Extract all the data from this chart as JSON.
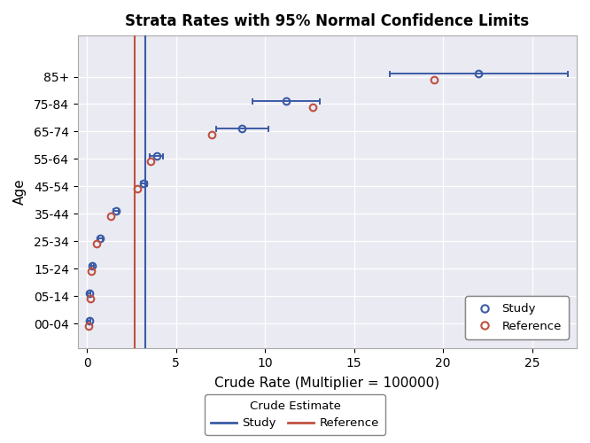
{
  "title": "Strata Rates with 95% Normal Confidence Limits",
  "xlabel": "Crude Rate (Multiplier = 100000)",
  "ylabel": "Age",
  "age_groups": [
    "00-04",
    "05-14",
    "15-24",
    "25-34",
    "35-44",
    "45-54",
    "55-64",
    "65-74",
    "75-84",
    "85+"
  ],
  "study": {
    "values": [
      0.12,
      0.12,
      0.3,
      0.75,
      1.65,
      3.2,
      3.9,
      8.7,
      11.2,
      22.0
    ],
    "ci_low": [
      0.05,
      0.05,
      0.22,
      0.62,
      1.5,
      3.02,
      3.55,
      7.25,
      9.3,
      17.0
    ],
    "ci_high": [
      0.19,
      0.19,
      0.38,
      0.88,
      1.8,
      3.38,
      4.25,
      10.2,
      13.1,
      27.0
    ]
  },
  "reference": {
    "values": [
      0.07,
      0.18,
      0.22,
      0.52,
      1.35,
      2.85,
      3.6,
      7.0,
      12.7,
      19.5
    ]
  },
  "vline_study": 3.3,
  "vline_ref": 2.7,
  "study_color": "#3B5BA5",
  "ref_color": "#C05040",
  "xlim": [
    -0.5,
    27.5
  ],
  "ylim": [
    -0.9,
    10.5
  ],
  "xticks": [
    0,
    5,
    10,
    15,
    20,
    25
  ],
  "background_color": "#eaeaf2",
  "plot_bg": "#eaeaf2",
  "fig_bg": "#ffffff",
  "grid_color": "#ffffff",
  "title_fontsize": 12,
  "axis_fontsize": 10,
  "tick_fontsize": 10
}
